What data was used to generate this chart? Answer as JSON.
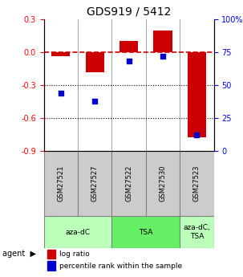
{
  "title": "GDS919 / 5412",
  "samples": [
    "GSM27521",
    "GSM27527",
    "GSM27522",
    "GSM27530",
    "GSM27523"
  ],
  "log_ratios": [
    -0.04,
    -0.18,
    0.1,
    0.2,
    -0.78
  ],
  "percentile_ranks": [
    44,
    38,
    68,
    72,
    12
  ],
  "ylim_left": [
    -0.9,
    0.3
  ],
  "ylim_right": [
    0,
    100
  ],
  "yticks_left": [
    0.3,
    0.0,
    -0.3,
    -0.6,
    -0.9
  ],
  "yticks_right": [
    100,
    75,
    50,
    25,
    0
  ],
  "bar_color": "#cc0000",
  "dot_color": "#0000cc",
  "legend_bar_label": "log ratio",
  "legend_dot_label": "percentile rank within the sample",
  "hline_color": "#cc0000",
  "hline_style": "--",
  "dotline_color": "#000000",
  "dotline_style": ":"
}
